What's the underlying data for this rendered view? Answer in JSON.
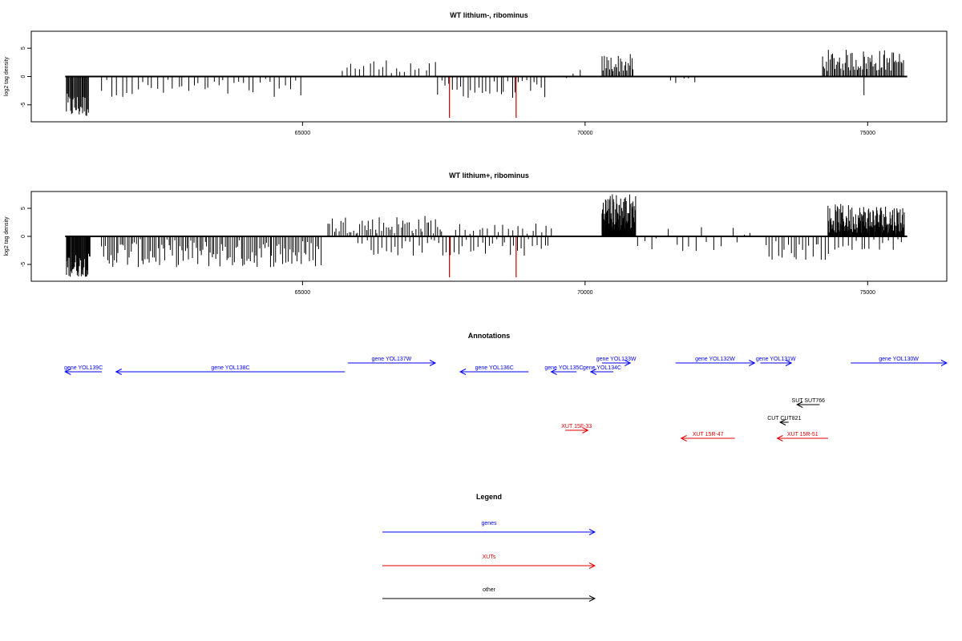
{
  "chart_data": [
    {
      "type": "bar",
      "title": "WT lithium-, ribominus",
      "ylabel": "log2 tag density",
      "xlabel": "",
      "xlim": [
        60200,
        76400
      ],
      "ylim": [
        -8,
        8
      ],
      "x_ticks": [
        65000,
        70000,
        75000
      ],
      "x_tick_labels": [
        "65000",
        "70000",
        "75000"
      ],
      "y_ticks": [
        -5,
        0,
        5
      ],
      "y_tick_labels": [
        "-5",
        "0",
        "5"
      ],
      "baseline_range": [
        60800,
        75700
      ],
      "colors": {
        "bars": "#000000",
        "highlight": "#c00000"
      },
      "highlight_bars": [
        {
          "x": 67600,
          "y": -7.3
        },
        {
          "x": 68780,
          "y": -7.3
        }
      ],
      "segments": [
        {
          "x0": 60820,
          "x1": 61220,
          "step": 15,
          "lo": -7.2,
          "hi": -3.0,
          "sign": -1
        },
        {
          "x0": 61450,
          "x1": 65000,
          "step": 90,
          "lo": -3.6,
          "hi": -0.4,
          "sign": -1
        },
        {
          "x0": 65700,
          "x1": 66900,
          "step": 80,
          "lo": 0.6,
          "hi": 3.2,
          "sign": 1
        },
        {
          "x0": 66980,
          "x1": 67400,
          "step": 95,
          "lo": 0.6,
          "hi": 2.6,
          "sign": 1
        },
        {
          "x0": 67400,
          "x1": 69300,
          "step": 65,
          "lo": -3.8,
          "hi": -0.6,
          "sign": -1
        },
        {
          "x0": 69600,
          "x1": 69900,
          "step": 100,
          "lo": -2.8,
          "hi": 1.4,
          "sign": 1
        },
        {
          "x0": 70300,
          "x1": 70870,
          "step": 22,
          "lo": 0.8,
          "hi": 4.0,
          "sign": 1
        },
        {
          "x0": 71500,
          "x1": 72000,
          "step": 110,
          "lo": -2.6,
          "hi": 1.0,
          "sign": -1
        },
        {
          "x0": 74200,
          "x1": 75650,
          "step": 22,
          "lo": 1.0,
          "hi": 4.8,
          "sign": 1
        },
        {
          "x0": 74930,
          "x1": 74940,
          "step": 20,
          "lo": -3.3,
          "hi": -3.3,
          "sign": -1
        }
      ]
    },
    {
      "type": "bar",
      "title": "WT lithium+, ribominus",
      "ylabel": "log2 tag density",
      "xlabel": "",
      "xlim": [
        60200,
        76400
      ],
      "ylim": [
        -8,
        8
      ],
      "x_ticks": [
        65000,
        70000,
        75000
      ],
      "x_tick_labels": [
        "65000",
        "70000",
        "75000"
      ],
      "y_ticks": [
        -5,
        0,
        5
      ],
      "y_tick_labels": [
        "-5",
        "0",
        "5"
      ],
      "baseline_range": [
        60800,
        75700
      ],
      "colors": {
        "bars": "#000000",
        "highlight": "#c00000"
      },
      "highlight_bars": [
        {
          "x": 67600,
          "y": -7.3
        },
        {
          "x": 68780,
          "y": -7.3
        }
      ],
      "segments": [
        {
          "x0": 60820,
          "x1": 61250,
          "step": 12,
          "lo": -7.2,
          "hi": -3.0,
          "sign": -1
        },
        {
          "x0": 61450,
          "x1": 65350,
          "step": 32,
          "lo": -5.5,
          "hi": -0.5,
          "sign": -1
        },
        {
          "x0": 65450,
          "x1": 67500,
          "step": 38,
          "lo": 0.5,
          "hi": 3.8,
          "sign": 1
        },
        {
          "x0": 66000,
          "x1": 69400,
          "step": 70,
          "lo": -3.5,
          "hi": -0.4,
          "sign": -1
        },
        {
          "x0": 67700,
          "x1": 69400,
          "step": 85,
          "lo": 0.4,
          "hi": 2.4,
          "sign": 1
        },
        {
          "x0": 70300,
          "x1": 70900,
          "step": 7,
          "lo": 1.0,
          "hi": 7.8,
          "sign": 1
        },
        {
          "x0": 70950,
          "x1": 73000,
          "step": 110,
          "lo": -2.6,
          "hi": 1.8,
          "sign": 1
        },
        {
          "x0": 73200,
          "x1": 74300,
          "step": 55,
          "lo": -4.2,
          "hi": -0.5,
          "sign": -1
        },
        {
          "x0": 74300,
          "x1": 75650,
          "step": 9,
          "lo": 0.6,
          "hi": 5.8,
          "sign": 1
        },
        {
          "x0": 74400,
          "x1": 75600,
          "step": 80,
          "lo": -2.4,
          "hi": -0.5,
          "sign": -1
        }
      ]
    },
    {
      "type": "annotation",
      "title": "Annotations",
      "xlim": [
        60200,
        76400
      ],
      "colors": {
        "gene": "#0000ff",
        "xut": "#e00000",
        "other": "#000000"
      },
      "features": [
        {
          "label": "gene YOL139C",
          "kind": "gene",
          "start": 60800,
          "end": 61450,
          "strand": "-",
          "row": 1
        },
        {
          "label": "gene YOL138C",
          "kind": "gene",
          "start": 61700,
          "end": 65750,
          "strand": "-",
          "row": 1
        },
        {
          "label": "gene YOL137W",
          "kind": "gene",
          "start": 65800,
          "end": 67350,
          "strand": "+",
          "row": 0
        },
        {
          "label": "gene YOL136C",
          "kind": "gene",
          "start": 67790,
          "end": 69000,
          "strand": "-",
          "row": 1
        },
        {
          "label": "gene YOL135C",
          "kind": "gene",
          "start": 69400,
          "end": 69850,
          "strand": "-",
          "row": 1
        },
        {
          "label": "gene YOL134C",
          "kind": "gene",
          "start": 70100,
          "end": 70500,
          "strand": "-",
          "row": 1
        },
        {
          "label": "gene YOL133W",
          "kind": "gene",
          "start": 70300,
          "end": 70800,
          "strand": "+",
          "row": 0
        },
        {
          "label": "gene YOL132W",
          "kind": "gene",
          "start": 71600,
          "end": 73000,
          "strand": "+",
          "row": 0
        },
        {
          "label": "gene YOL131W",
          "kind": "gene",
          "start": 73100,
          "end": 73650,
          "strand": "+",
          "row": 0
        },
        {
          "label": "gene YOL130W",
          "kind": "gene",
          "start": 74700,
          "end": 76400,
          "strand": "+",
          "row": 0
        },
        {
          "label": "SUT SUT766",
          "kind": "other",
          "start": 73750,
          "end": 74150,
          "strand": "-",
          "row": 2
        },
        {
          "label": "CUT CUT821",
          "kind": "other",
          "start": 73450,
          "end": 73600,
          "strand": "-",
          "row": 3
        },
        {
          "label": "XUT 15F-33",
          "kind": "xut",
          "start": 69650,
          "end": 70050,
          "strand": "+",
          "row": 4
        },
        {
          "label": "XUT 15R-47",
          "kind": "xut",
          "start": 71700,
          "end": 72650,
          "strand": "-",
          "row": 5
        },
        {
          "label": "XUT 15R-51",
          "kind": "xut",
          "start": 73400,
          "end": 74300,
          "strand": "-",
          "row": 5
        }
      ]
    },
    {
      "type": "legend",
      "title": "Legend",
      "items": [
        {
          "label": "genes",
          "color": "#0000ff"
        },
        {
          "label": "XUTs",
          "color": "#e00000"
        },
        {
          "label": "other",
          "color": "#000000"
        }
      ]
    }
  ]
}
